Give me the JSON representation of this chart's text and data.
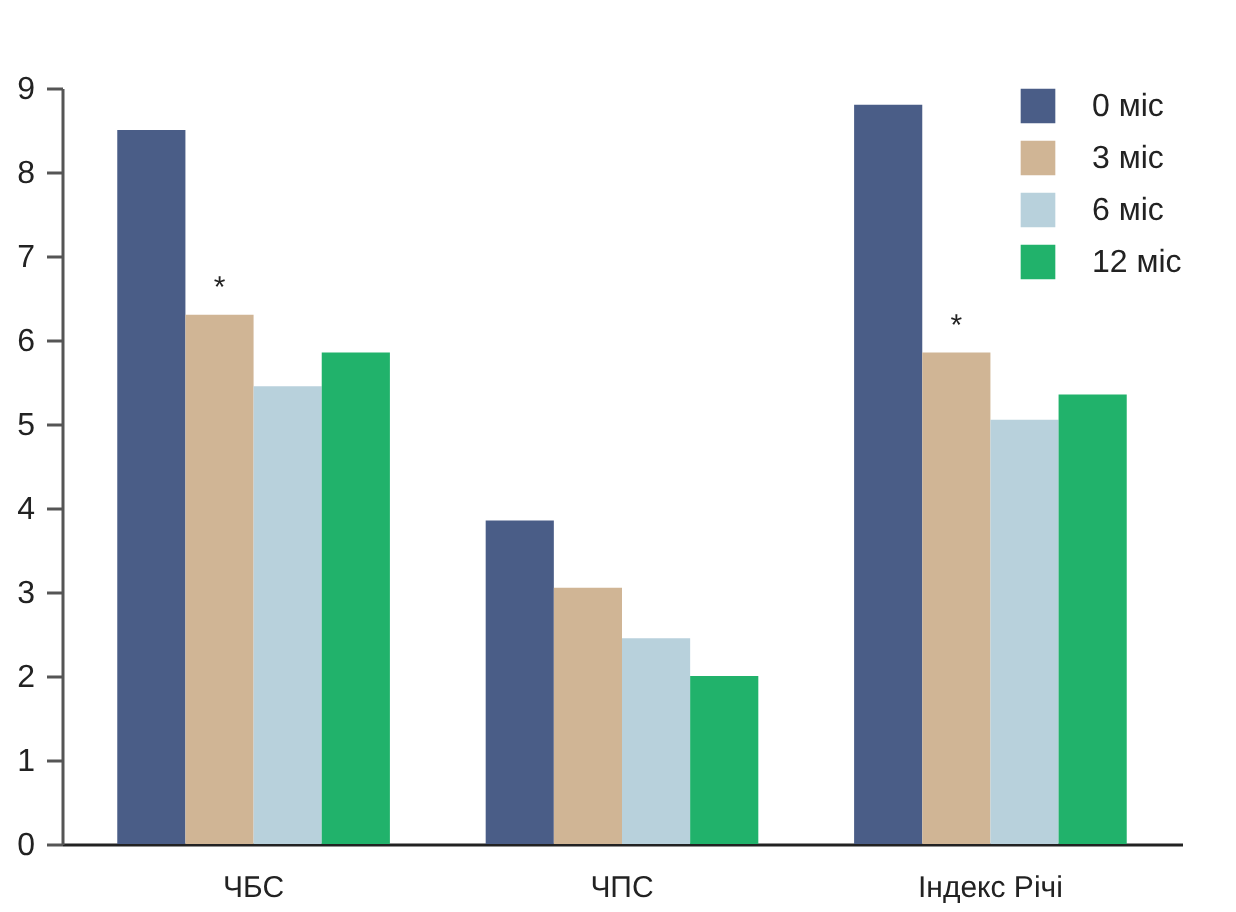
{
  "chart_data": {
    "type": "bar",
    "categories": [
      "ЧБС",
      "ЧПС",
      "Індекс Річі"
    ],
    "series": [
      {
        "name": "0 міс",
        "color": "#4a5d87",
        "values": [
          8.5,
          3.85,
          8.8
        ]
      },
      {
        "name": "3 міс",
        "color": "#d0b595",
        "values": [
          6.3,
          3.05,
          5.85
        ]
      },
      {
        "name": "6 міс",
        "color": "#b8d1dc",
        "values": [
          5.45,
          2.45,
          5.05
        ]
      },
      {
        "name": "12 міс",
        "color": "#21b26b",
        "values": [
          5.85,
          2.0,
          5.35
        ]
      }
    ],
    "ylim": [
      0,
      9
    ],
    "yticks": [
      0,
      1,
      2,
      3,
      4,
      5,
      6,
      7,
      8,
      9
    ],
    "annotations": [
      {
        "text": "*",
        "x": "ЧБС",
        "y": 6.3
      },
      {
        "text": "*",
        "x": "Індекс Річі",
        "y": 5.85
      }
    ],
    "legend": "top right",
    "grid": false
  }
}
